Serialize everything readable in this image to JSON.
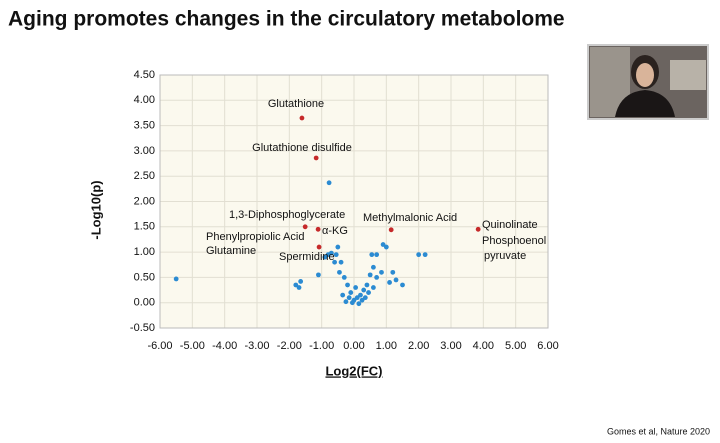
{
  "slide_title": "Aging promotes changes in the circulatory metabolome",
  "citation": "Gomes et al, Nature 2020",
  "chart_data": {
    "type": "scatter",
    "xlabel": "Log2(FC)",
    "ylabel": "-Log10(p)",
    "xlim": [
      -6,
      6
    ],
    "ylim": [
      -0.5,
      4.5
    ],
    "xticks": [
      {
        "value": -6,
        "label": "-6.00"
      },
      {
        "value": -5,
        "label": "-5.00"
      },
      {
        "value": -4,
        "label": "-4.00"
      },
      {
        "value": -3,
        "label": "-3.00"
      },
      {
        "value": -2,
        "label": "-2.00"
      },
      {
        "value": -1,
        "label": "-1.00"
      },
      {
        "value": 0,
        "label": "0.00"
      },
      {
        "value": 1,
        "label": "1.00"
      },
      {
        "value": 2,
        "label": "2.00"
      },
      {
        "value": 3,
        "label": "3.00"
      },
      {
        "value": 4,
        "label": "4.00"
      },
      {
        "value": 5,
        "label": "5.00"
      },
      {
        "value": 6,
        "label": "6.00"
      }
    ],
    "yticks": [
      {
        "value": -0.5,
        "label": "-0.50"
      },
      {
        "value": 0,
        "label": "0.00"
      },
      {
        "value": 0.5,
        "label": "0.50"
      },
      {
        "value": 1,
        "label": "1.00"
      },
      {
        "value": 1.5,
        "label": "1.50"
      },
      {
        "value": 2,
        "label": "2.00"
      },
      {
        "value": 2.5,
        "label": "2.50"
      },
      {
        "value": 3,
        "label": "3.00"
      },
      {
        "value": 3.5,
        "label": "3.50"
      },
      {
        "value": 4,
        "label": "4.00"
      },
      {
        "value": 4.5,
        "label": "4.50"
      }
    ],
    "grid": true,
    "series": [
      {
        "color": "#c62a2a",
        "x": [
          -1.61,
          -1.17,
          -1.51,
          -1.11,
          -1.08,
          1.15,
          3.84
        ],
        "values": [
          3.65,
          2.86,
          1.5,
          1.45,
          1.1,
          1.44,
          1.45
        ]
      },
      {
        "color": "#2b8bd2",
        "x": [
          -5.5,
          -0.77,
          -1.8,
          -1.7,
          -1.65,
          -1.1,
          -0.9,
          -0.8,
          -0.7,
          -0.5,
          -0.4,
          -0.45,
          -0.3,
          -0.2,
          -0.1,
          0,
          0.1,
          0.2,
          -0.15,
          0.05,
          0.3,
          0.4,
          0.5,
          0.6,
          0.55,
          0.7,
          0.9,
          1.0,
          0.85,
          1.1,
          1.3,
          1.5,
          2.0,
          2.2,
          -0.25,
          0.15,
          0.25,
          -0.05,
          0.35,
          -0.35,
          0.45,
          0.6,
          -0.6,
          -0.55,
          1.2,
          0.7
        ],
        "values": [
          0.47,
          2.37,
          0.35,
          0.3,
          0.42,
          0.55,
          0.9,
          0.95,
          0.98,
          1.1,
          0.8,
          0.6,
          0.5,
          0.35,
          0.2,
          0.05,
          0.1,
          0.15,
          0.1,
          0.3,
          0.25,
          0.35,
          0.55,
          0.7,
          0.95,
          0.95,
          1.15,
          1.1,
          0.6,
          0.4,
          0.45,
          0.35,
          0.95,
          0.95,
          0.02,
          -0.02,
          0.05,
          0,
          0.1,
          0.15,
          0.2,
          0.3,
          0.8,
          0.95,
          0.6,
          0.5
        ]
      }
    ],
    "annotations": [
      "Glutathione",
      "Glutathione disulfide",
      "1,3-Diphosphoglycerate",
      "α-KG",
      "Phenylpropiolic Acid",
      "Glutamine",
      "Spermidine",
      "Methylmalonic Acid",
      "Quinolinate",
      "Phosphoenol",
      "pyruvate"
    ]
  }
}
